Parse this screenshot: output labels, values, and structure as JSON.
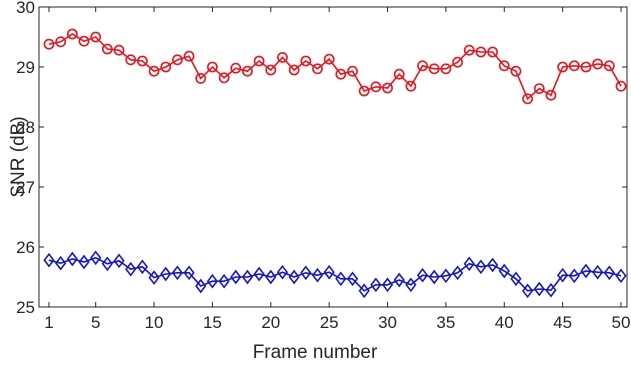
{
  "chart_data": {
    "type": "line",
    "title": "",
    "xlabel": "Frame number",
    "ylabel": "SNR (dB)",
    "xlim": [
      1,
      50
    ],
    "ylim": [
      25,
      30
    ],
    "xticks": [
      1,
      5,
      10,
      15,
      20,
      25,
      30,
      35,
      40,
      45,
      50
    ],
    "yticks": [
      25,
      26,
      27,
      28,
      29,
      30
    ],
    "grid": false,
    "x": [
      1,
      2,
      3,
      4,
      5,
      6,
      7,
      8,
      9,
      10,
      11,
      12,
      13,
      14,
      15,
      16,
      17,
      18,
      19,
      20,
      21,
      22,
      23,
      24,
      25,
      26,
      27,
      28,
      29,
      30,
      31,
      32,
      33,
      34,
      35,
      36,
      37,
      38,
      39,
      40,
      41,
      42,
      43,
      44,
      45,
      46,
      47,
      48,
      49,
      50
    ],
    "series": [
      {
        "color": "#e8141e",
        "marker": "circle",
        "values": [
          29.38,
          29.42,
          29.55,
          29.43,
          29.5,
          29.3,
          29.28,
          29.12,
          29.1,
          28.93,
          29.0,
          29.12,
          29.18,
          28.81,
          29.0,
          28.82,
          28.98,
          28.93,
          29.1,
          28.95,
          29.16,
          28.95,
          29.1,
          28.97,
          29.13,
          28.88,
          28.93,
          28.6,
          28.67,
          28.65,
          28.88,
          28.68,
          29.02,
          28.97,
          28.97,
          29.08,
          29.28,
          29.25,
          29.25,
          29.02,
          28.93,
          28.47,
          28.64,
          28.53,
          29.0,
          29.02,
          29.0,
          29.05,
          29.02,
          28.68
        ]
      },
      {
        "color": "#1414c8",
        "marker": "diamond",
        "values": [
          25.78,
          25.73,
          25.8,
          25.75,
          25.82,
          25.72,
          25.77,
          25.63,
          25.67,
          25.49,
          25.55,
          25.57,
          25.57,
          25.35,
          25.43,
          25.43,
          25.5,
          25.5,
          25.55,
          25.5,
          25.58,
          25.5,
          25.57,
          25.53,
          25.58,
          25.47,
          25.47,
          25.27,
          25.37,
          25.37,
          25.45,
          25.37,
          25.53,
          25.5,
          25.52,
          25.57,
          25.72,
          25.67,
          25.7,
          25.6,
          25.47,
          25.27,
          25.3,
          25.28,
          25.53,
          25.52,
          25.6,
          25.58,
          25.57,
          25.52
        ]
      }
    ]
  }
}
